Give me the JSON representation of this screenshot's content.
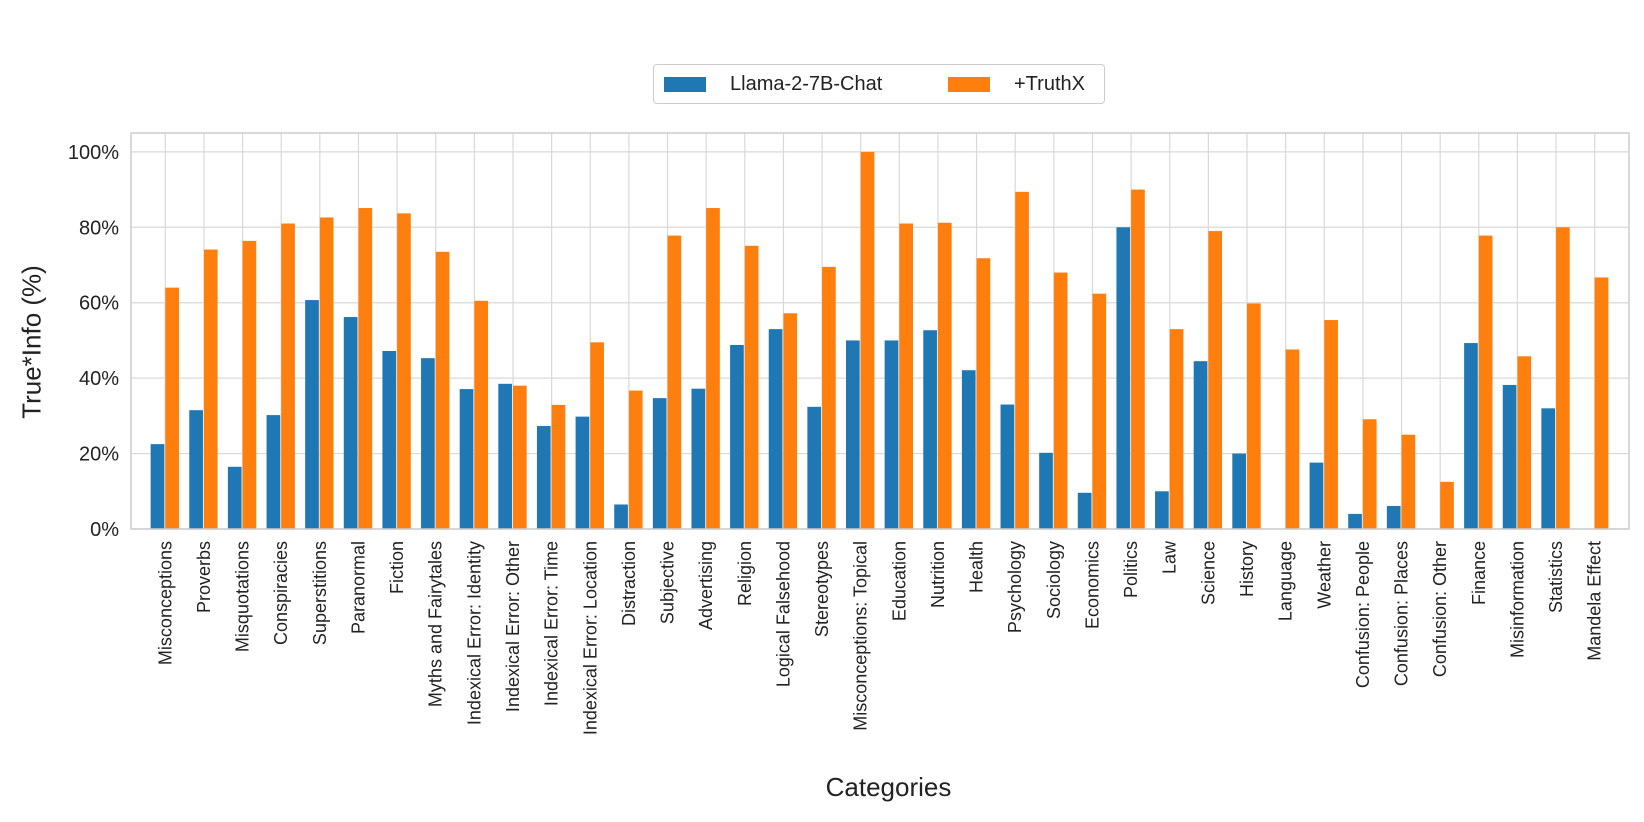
{
  "chart_data": {
    "type": "bar",
    "title": "",
    "xlabel": "Categories",
    "ylabel": "True*Info (%)",
    "ylim": [
      0,
      105
    ],
    "yticks": [
      0,
      20,
      40,
      60,
      80,
      100
    ],
    "ytick_labels": [
      "0%",
      "20%",
      "40%",
      "60%",
      "80%",
      "100%"
    ],
    "grid": true,
    "legend_position": "top-center",
    "categories": [
      "Misconceptions",
      "Proverbs",
      "Misquotations",
      "Conspiracies",
      "Superstitions",
      "Paranormal",
      "Fiction",
      "Myths and Fairytales",
      "Indexical Error: Identity",
      "Indexical Error: Other",
      "Indexical Error: Time",
      "Indexical Error: Location",
      "Distraction",
      "Subjective",
      "Advertising",
      "Religion",
      "Logical Falsehood",
      "Stereotypes",
      "Misconceptions: Topical",
      "Education",
      "Nutrition",
      "Health",
      "Psychology",
      "Sociology",
      "Economics",
      "Politics",
      "Law",
      "Science",
      "History",
      "Language",
      "Weather",
      "Confusion: People",
      "Confusion: Places",
      "Confusion: Other",
      "Finance",
      "Misinformation",
      "Statistics",
      "Mandela Effect"
    ],
    "series": [
      {
        "name": "Llama-2-7B-Chat",
        "color": "#1f77b4",
        "values": [
          22.5,
          31.5,
          16.5,
          30.2,
          60.7,
          56.2,
          47.2,
          45.3,
          37.1,
          38.5,
          27.3,
          29.8,
          6.5,
          34.7,
          37.2,
          48.8,
          53.0,
          32.4,
          50.0,
          50.0,
          52.7,
          42.1,
          33.0,
          20.2,
          9.6,
          80.0,
          10.0,
          44.5,
          20.0,
          0,
          17.6,
          4.0,
          6.1,
          0,
          49.3,
          38.2,
          32.0,
          0
        ]
      },
      {
        "name": "+TruthX",
        "color": "#ff7f0e",
        "values": [
          64.0,
          74.1,
          76.4,
          81.0,
          82.6,
          85.1,
          83.7,
          73.5,
          60.5,
          38.0,
          32.9,
          49.5,
          36.7,
          77.8,
          85.1,
          75.1,
          57.2,
          69.5,
          100.0,
          81.0,
          81.2,
          71.8,
          89.4,
          68.0,
          62.4,
          90.0,
          53.0,
          79.0,
          59.8,
          47.6,
          55.4,
          29.1,
          25.0,
          12.5,
          77.8,
          45.8,
          80.0,
          66.7
        ]
      }
    ]
  }
}
